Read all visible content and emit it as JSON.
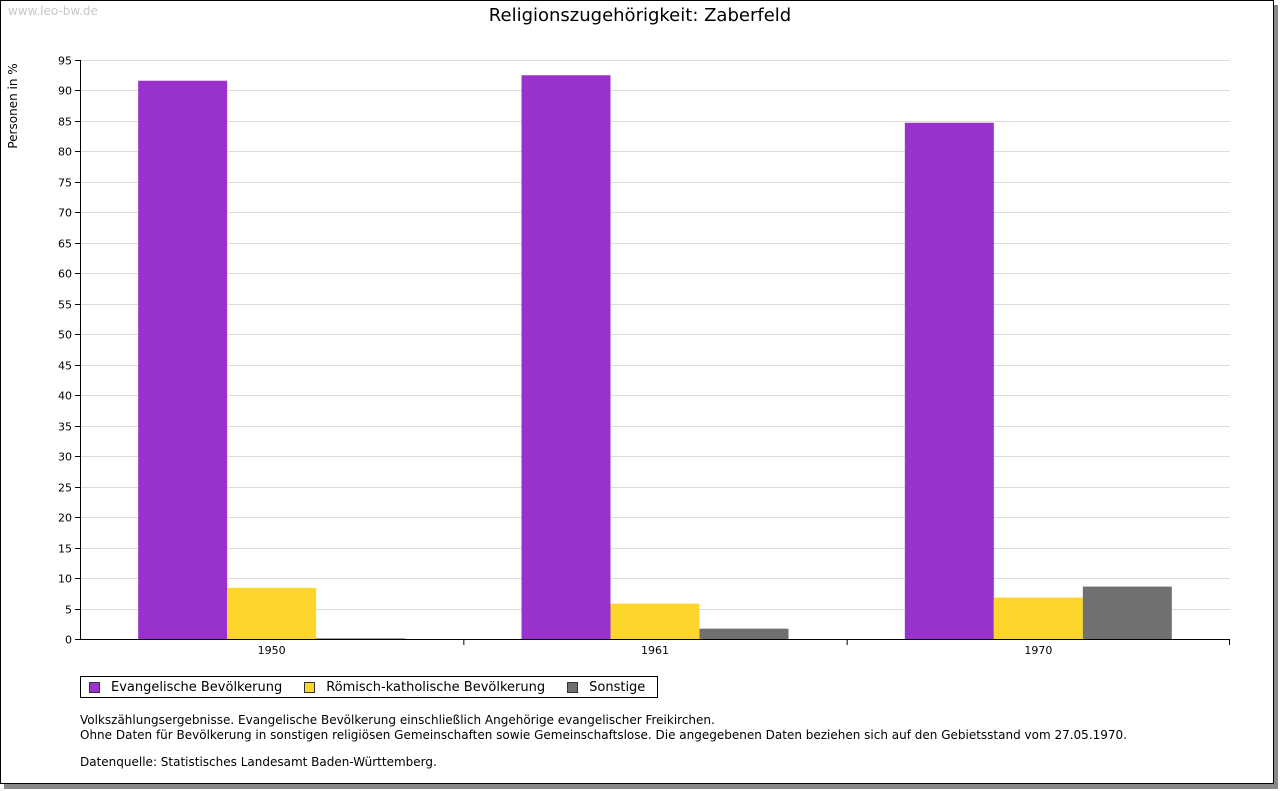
{
  "watermark": "www.leo-bw.de",
  "chart_data": {
    "type": "bar",
    "title": "Religionszugehörigkeit: Zaberfeld",
    "ylabel": "Personen in %",
    "xlabel": "",
    "ylim": [
      0,
      95
    ],
    "ytick_step": 5,
    "grid": true,
    "categories": [
      "1950",
      "1961",
      "1970"
    ],
    "series": [
      {
        "name": "Evangelische Bevölkerung",
        "color": "#9932CC",
        "values": [
          91.6,
          92.5,
          84.7
        ]
      },
      {
        "name": "Römisch-katholische Bevölkerung",
        "color": "#FDD52B",
        "values": [
          8.4,
          5.8,
          6.8
        ]
      },
      {
        "name": "Sonstige",
        "color": "#707070",
        "values": [
          0.1,
          1.7,
          8.6
        ]
      }
    ],
    "legend_position": "bottom-left"
  },
  "notes": {
    "line1": "Volkszählungsergebnisse. Evangelische Bevölkerung einschließlich Angehörige evangelischer Freikirchen.",
    "line2": "Ohne Daten für Bevölkerung in sonstigen religiösen Gemeinschaften sowie Gemeinschaftslose. Die angegebenen Daten beziehen sich auf den Gebietsstand vom 27.05.1970.",
    "source": "Datenquelle: Statistisches Landesamt Baden-Württemberg."
  }
}
